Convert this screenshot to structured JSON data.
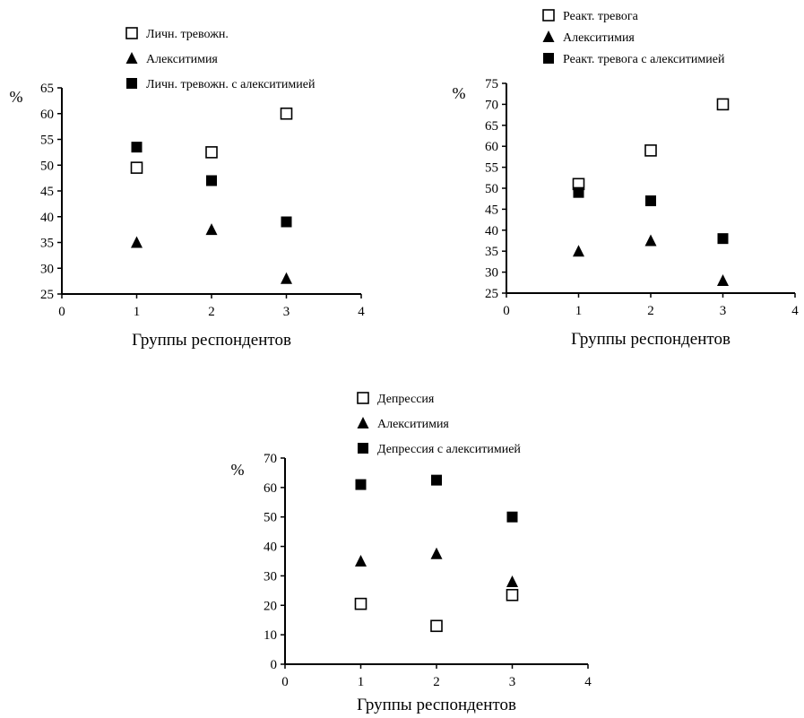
{
  "chart_data": [
    {
      "type": "scatter",
      "title": "",
      "xlabel": "Группы респондентов",
      "ylabel": "%",
      "xlim": [
        0,
        4
      ],
      "ylim": [
        25,
        65
      ],
      "xticks": [
        0,
        1,
        2,
        3,
        4
      ],
      "yticks": [
        25,
        30,
        35,
        40,
        45,
        50,
        55,
        60,
        65
      ],
      "grid": false,
      "legend_position": "top",
      "series": [
        {
          "name": "Личн. тревожн.",
          "marker": "open-square",
          "color": "#000000",
          "x": [
            1,
            2,
            3
          ],
          "y": [
            49.5,
            52.5,
            60
          ]
        },
        {
          "name": "Алекситимия",
          "marker": "triangle",
          "color": "#000000",
          "x": [
            1,
            2,
            3
          ],
          "y": [
            35,
            37.5,
            28
          ]
        },
        {
          "name": "Личн. тревожн. с алекситимией",
          "marker": "filled-square",
          "color": "#000000",
          "x": [
            1,
            2,
            3
          ],
          "y": [
            53.5,
            47,
            39
          ]
        }
      ]
    },
    {
      "type": "scatter",
      "title": "",
      "xlabel": "Группы респондентов",
      "ylabel": "%",
      "xlim": [
        0,
        4
      ],
      "ylim": [
        25,
        75
      ],
      "xticks": [
        0,
        1,
        2,
        3,
        4
      ],
      "yticks": [
        25,
        30,
        35,
        40,
        45,
        50,
        55,
        60,
        65,
        70,
        75
      ],
      "grid": false,
      "legend_position": "top",
      "series": [
        {
          "name": "Реакт. тревога",
          "marker": "open-square",
          "color": "#000000",
          "x": [
            1,
            2,
            3
          ],
          "y": [
            51,
            59,
            70
          ]
        },
        {
          "name": "Алекситимия",
          "marker": "triangle",
          "color": "#000000",
          "x": [
            1,
            2,
            3
          ],
          "y": [
            35,
            37.5,
            28
          ]
        },
        {
          "name": "Реакт. тревога с алекситимией",
          "marker": "filled-square",
          "color": "#000000",
          "x": [
            1,
            2,
            3
          ],
          "y": [
            49,
            47,
            38
          ]
        }
      ]
    },
    {
      "type": "scatter",
      "title": "",
      "xlabel": "Группы респондентов",
      "ylabel": "%",
      "xlim": [
        0,
        4
      ],
      "ylim": [
        0,
        70
      ],
      "xticks": [
        0,
        1,
        2,
        3,
        4
      ],
      "yticks": [
        0,
        10,
        20,
        30,
        40,
        50,
        60,
        70
      ],
      "grid": false,
      "legend_position": "top",
      "series": [
        {
          "name": "Депрессия",
          "marker": "open-square",
          "color": "#000000",
          "x": [
            1,
            2,
            3
          ],
          "y": [
            20.5,
            13,
            23.5
          ]
        },
        {
          "name": "Алекситимия",
          "marker": "triangle",
          "color": "#000000",
          "x": [
            1,
            2,
            3
          ],
          "y": [
            35,
            37.5,
            28
          ]
        },
        {
          "name": "Депрессия с алекситимией",
          "marker": "filled-square",
          "color": "#000000",
          "x": [
            1,
            2,
            3
          ],
          "y": [
            61,
            62.5,
            50
          ]
        }
      ]
    }
  ]
}
